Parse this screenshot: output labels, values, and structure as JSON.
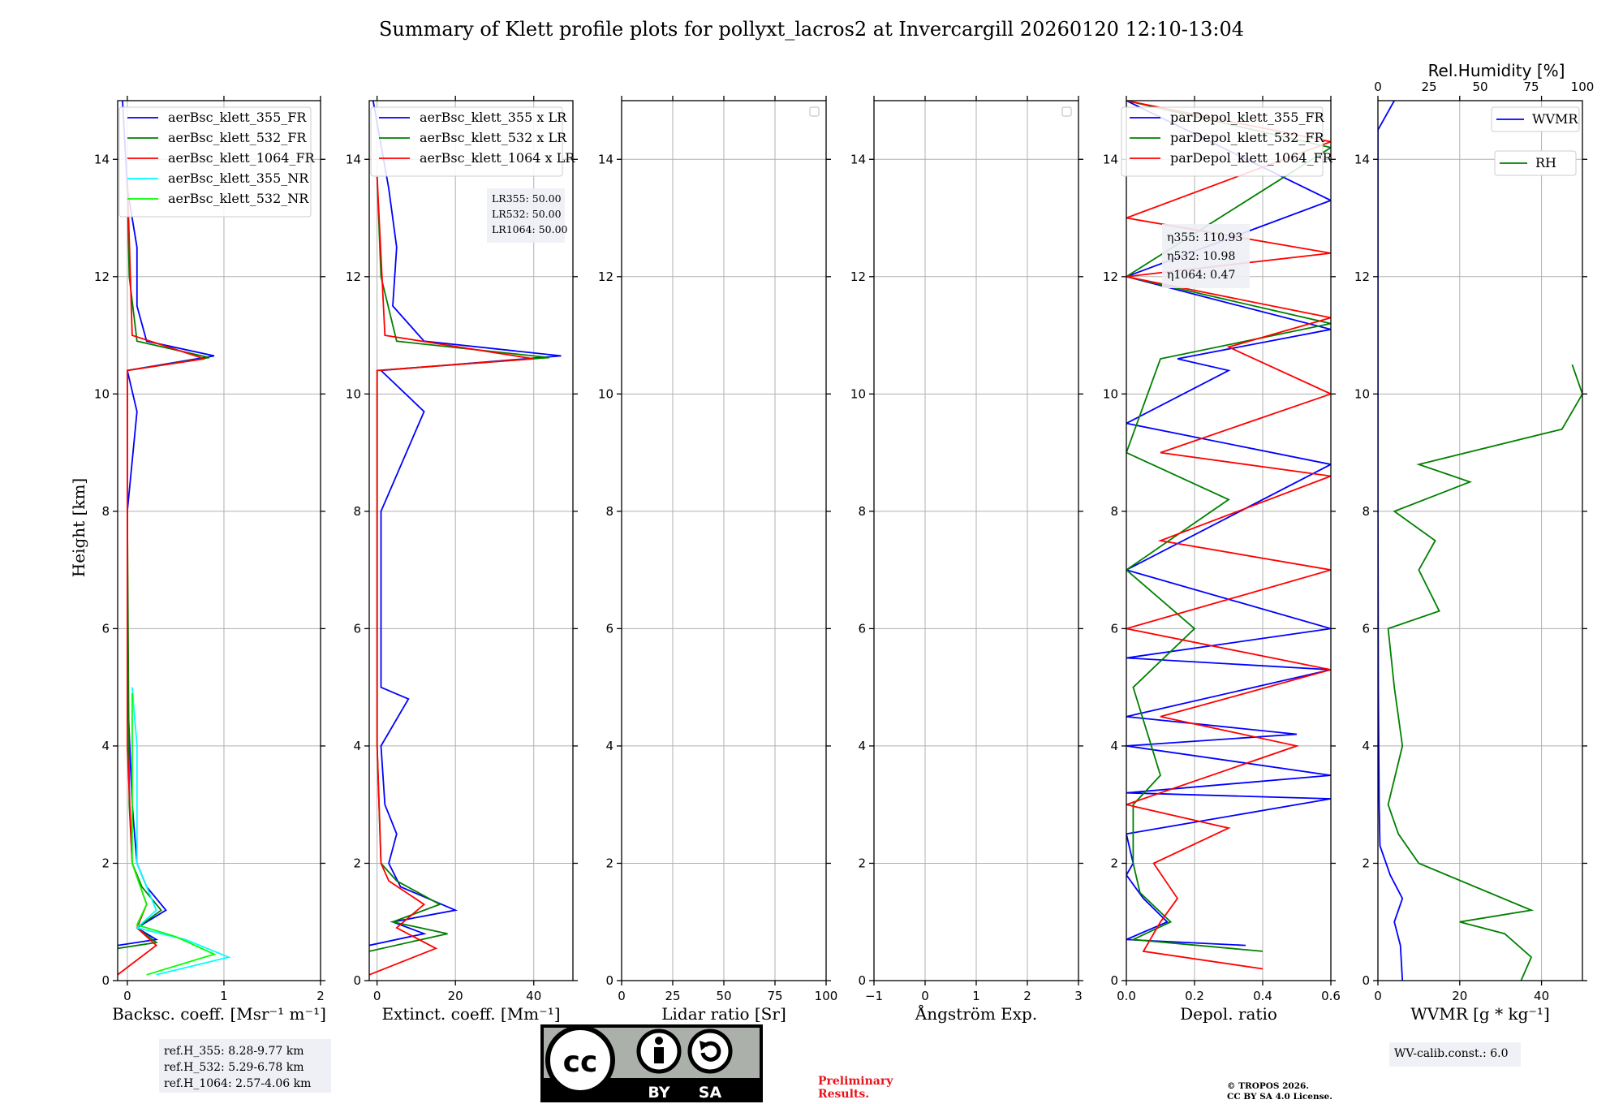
{
  "title": "Summary of Klett profile plots for pollyxt_lacros2 at Invercargill 20260120 12:10-13:04",
  "ylabel": "Height [km]",
  "chart_data": [
    {
      "type": "line",
      "key": "bsc",
      "xlabel": "Backsc. coeff. [Msr⁻¹ m⁻¹]",
      "xlim": [
        -0.1,
        2
      ],
      "xticks": [
        0,
        1,
        2
      ],
      "ylim": [
        0,
        15
      ],
      "yticks": [
        0,
        2,
        4,
        6,
        8,
        10,
        12,
        14
      ],
      "legend": [
        {
          "label": "aerBsc_klett_355_FR",
          "color": "#0000ff"
        },
        {
          "label": "aerBsc_klett_532_FR",
          "color": "#008000"
        },
        {
          "label": "aerBsc_klett_1064_FR",
          "color": "#ff0000"
        },
        {
          "label": "aerBsc_klett_355_NR",
          "color": "#00ffff"
        },
        {
          "label": "aerBsc_klett_532_NR",
          "color": "#00ff00"
        }
      ],
      "series": [
        {
          "name": "aerBsc_klett_355_FR",
          "color": "#0000ff",
          "points": [
            [
              -0.1,
              0.6
            ],
            [
              0.3,
              0.7
            ],
            [
              0.1,
              0.9
            ],
            [
              0.4,
              1.2
            ],
            [
              0.2,
              1.6
            ],
            [
              0.1,
              2.0
            ],
            [
              0.05,
              3.0
            ],
            [
              0.0,
              5.0
            ],
            [
              0.0,
              8.0
            ],
            [
              0.1,
              9.7
            ],
            [
              0.0,
              10.4
            ],
            [
              0.9,
              10.65
            ],
            [
              0.2,
              10.9
            ],
            [
              0.1,
              11.5
            ],
            [
              0.1,
              12.5
            ],
            [
              0.0,
              13.5
            ],
            [
              -0.05,
              15
            ]
          ]
        },
        {
          "name": "aerBsc_klett_532_FR",
          "color": "#008000",
          "points": [
            [
              -0.1,
              0.55
            ],
            [
              0.3,
              0.65
            ],
            [
              0.1,
              0.9
            ],
            [
              0.35,
              1.2
            ],
            [
              0.15,
              1.6
            ],
            [
              0.05,
              2.0
            ],
            [
              0.02,
              3.0
            ],
            [
              0.0,
              8.0
            ],
            [
              0.0,
              10.4
            ],
            [
              0.85,
              10.62
            ],
            [
              0.1,
              10.9
            ],
            [
              0.02,
              12
            ],
            [
              0.0,
              13.5
            ]
          ]
        },
        {
          "name": "aerBsc_klett_1064_FR",
          "color": "#ff0000",
          "points": [
            [
              -0.1,
              0.1
            ],
            [
              0.3,
              0.6
            ],
            [
              0.1,
              0.9
            ],
            [
              0.2,
              1.3
            ],
            [
              0.05,
              2.0
            ],
            [
              0.0,
              4.0
            ],
            [
              0.0,
              10.4
            ],
            [
              0.8,
              10.6
            ],
            [
              0.05,
              11.0
            ],
            [
              0.0,
              13.7
            ]
          ]
        },
        {
          "name": "aerBsc_klett_355_NR",
          "color": "#00ffff",
          "points": [
            [
              0.3,
              0.1
            ],
            [
              1.05,
              0.4
            ],
            [
              0.6,
              0.7
            ],
            [
              0.1,
              0.9
            ],
            [
              0.3,
              1.2
            ],
            [
              0.1,
              2.0
            ],
            [
              0.1,
              3.0
            ],
            [
              0.1,
              4.0
            ],
            [
              0.05,
              5.0
            ]
          ]
        },
        {
          "name": "aerBsc_klett_532_NR",
          "color": "#00ff00",
          "points": [
            [
              0.2,
              0.1
            ],
            [
              0.9,
              0.45
            ],
            [
              0.5,
              0.75
            ],
            [
              0.1,
              0.95
            ],
            [
              0.2,
              1.3
            ],
            [
              0.05,
              2.0
            ],
            [
              0.05,
              3.5
            ],
            [
              0.05,
              4.9
            ]
          ]
        }
      ]
    },
    {
      "type": "line",
      "key": "ext",
      "xlabel": "Extinct. coeff. [Mm⁻¹]",
      "xlim": [
        -2,
        50
      ],
      "xticks": [
        0,
        20,
        40
      ],
      "ylim": [
        0,
        15
      ],
      "yticks": [
        0,
        2,
        4,
        6,
        8,
        10,
        12,
        14
      ],
      "legend": [
        {
          "label": "aerBsc_klett_355 x LR",
          "color": "#0000ff"
        },
        {
          "label": "aerBsc_klett_532 x LR",
          "color": "#008000"
        },
        {
          "label": "aerBsc_klett_1064 x LR",
          "color": "#ff0000"
        }
      ],
      "annotation": [
        "LR355: 50.00",
        "LR532: 50.00",
        "LR1064: 50.00"
      ],
      "series": [
        {
          "name": "aerBsc_klett_355 x LR",
          "color": "#0000ff",
          "points": [
            [
              -2,
              0.6
            ],
            [
              12,
              0.8
            ],
            [
              4,
              1.0
            ],
            [
              20,
              1.2
            ],
            [
              6,
              1.6
            ],
            [
              3,
              2.0
            ],
            [
              5,
              2.5
            ],
            [
              2,
              3.0
            ],
            [
              1,
              4.0
            ],
            [
              8,
              4.8
            ],
            [
              1,
              5.0
            ],
            [
              1,
              8.0
            ],
            [
              12,
              9.7
            ],
            [
              1,
              10.4
            ],
            [
              47,
              10.65
            ],
            [
              12,
              10.9
            ],
            [
              4,
              11.5
            ],
            [
              5,
              12.5
            ],
            [
              3,
              13.5
            ],
            [
              -1,
              15
            ]
          ]
        },
        {
          "name": "aerBsc_klett_532 x LR",
          "color": "#008000",
          "points": [
            [
              -2,
              0.5
            ],
            [
              18,
              0.8
            ],
            [
              4,
              1.0
            ],
            [
              16,
              1.3
            ],
            [
              5,
              1.7
            ],
            [
              1,
              2.0
            ],
            [
              0,
              4.0
            ],
            [
              0,
              10.4
            ],
            [
              44,
              10.62
            ],
            [
              5,
              10.9
            ],
            [
              1,
              12
            ],
            [
              0,
              13.7
            ]
          ]
        },
        {
          "name": "aerBsc_klett_1064 x LR",
          "color": "#ff0000",
          "points": [
            [
              -2,
              0.1
            ],
            [
              15,
              0.55
            ],
            [
              5,
              0.9
            ],
            [
              12,
              1.3
            ],
            [
              3,
              1.7
            ],
            [
              1,
              2.0
            ],
            [
              0,
              4.0
            ],
            [
              0,
              10.4
            ],
            [
              40,
              10.6
            ],
            [
              2,
              11
            ],
            [
              0,
              13.7
            ]
          ]
        }
      ]
    },
    {
      "type": "line",
      "key": "lr",
      "xlabel": "Lidar ratio [Sr]",
      "xlim": [
        0,
        100
      ],
      "xticks": [
        0,
        25,
        50,
        75,
        100
      ],
      "ylim": [
        0,
        15
      ],
      "yticks": [
        0,
        2,
        4,
        6,
        8,
        10,
        12,
        14
      ],
      "series": []
    },
    {
      "type": "line",
      "key": "ang",
      "xlabel": "Ångström Exp.",
      "xlim": [
        -1,
        3
      ],
      "xticks": [
        -1,
        0,
        1,
        2,
        3
      ],
      "ylim": [
        0,
        15
      ],
      "yticks": [
        0,
        2,
        4,
        6,
        8,
        10,
        12,
        14
      ],
      "series": []
    },
    {
      "type": "line",
      "key": "depol",
      "xlabel": "Depol. ratio",
      "xlim": [
        0,
        0.6
      ],
      "xticks": [
        0.0,
        0.2,
        0.4,
        0.6
      ],
      "ylim": [
        0,
        15
      ],
      "yticks": [
        0,
        2,
        4,
        6,
        8,
        10,
        12,
        14
      ],
      "legend": [
        {
          "label": "parDepol_klett_355_FR",
          "color": "#0000ff"
        },
        {
          "label": "parDepol_klett_532_FR",
          "color": "#008000"
        },
        {
          "label": "parDepol_klett_1064_FR",
          "color": "#ff0000"
        }
      ],
      "annotation": [
        "η355: 110.93",
        "η532: 10.98",
        "η1064: 0.47"
      ],
      "series": [
        {
          "name": "parDepol_klett_355_FR",
          "color": "#0000ff",
          "points": [
            [
              0.35,
              0.6
            ],
            [
              0.0,
              0.7
            ],
            [
              0.12,
              1.0
            ],
            [
              0.05,
              1.4
            ],
            [
              0.0,
              1.8
            ],
            [
              0.02,
              2.0
            ],
            [
              0.0,
              2.5
            ],
            [
              0.6,
              3.1
            ],
            [
              0.0,
              3.2
            ],
            [
              0.6,
              3.5
            ],
            [
              0.0,
              4.0
            ],
            [
              0.5,
              4.2
            ],
            [
              0.0,
              4.5
            ],
            [
              0.6,
              5.3
            ],
            [
              0.0,
              5.5
            ],
            [
              0.6,
              6.0
            ],
            [
              0.0,
              7.0
            ],
            [
              0.6,
              8.8
            ],
            [
              0.0,
              9.5
            ],
            [
              0.3,
              10.4
            ],
            [
              0.15,
              10.6
            ],
            [
              0.6,
              11.1
            ],
            [
              0.0,
              12.0
            ],
            [
              0.6,
              13.3
            ],
            [
              0.0,
              15
            ]
          ]
        },
        {
          "name": "parDepol_klett_532_FR",
          "color": "#008000",
          "points": [
            [
              0.4,
              0.5
            ],
            [
              0.02,
              0.7
            ],
            [
              0.13,
              1.0
            ],
            [
              0.04,
              1.5
            ],
            [
              0.02,
              2.0
            ],
            [
              0.02,
              3.0
            ],
            [
              0.1,
              3.5
            ],
            [
              0.02,
              5.0
            ],
            [
              0.2,
              6.0
            ],
            [
              0.0,
              7.0
            ],
            [
              0.3,
              8.2
            ],
            [
              0.0,
              9.0
            ],
            [
              0.1,
              10.6
            ],
            [
              0.6,
              11.2
            ],
            [
              0.0,
              12.0
            ],
            [
              0.6,
              14.2
            ],
            [
              0.0,
              15
            ]
          ]
        },
        {
          "name": "parDepol_klett_1064_FR",
          "color": "#ff0000",
          "points": [
            [
              0.4,
              0.2
            ],
            [
              0.05,
              0.5
            ],
            [
              0.1,
              1.0
            ],
            [
              0.15,
              1.4
            ],
            [
              0.08,
              2.0
            ],
            [
              0.3,
              2.6
            ],
            [
              0.0,
              3.0
            ],
            [
              0.5,
              4.0
            ],
            [
              0.1,
              4.5
            ],
            [
              0.6,
              5.3
            ],
            [
              0.0,
              6.0
            ],
            [
              0.6,
              7.0
            ],
            [
              0.1,
              7.5
            ],
            [
              0.6,
              8.6
            ],
            [
              0.1,
              9.0
            ],
            [
              0.6,
              10.0
            ],
            [
              0.3,
              10.8
            ],
            [
              0.6,
              11.3
            ],
            [
              0.0,
              12.0
            ],
            [
              0.6,
              12.4
            ],
            [
              0.0,
              13.0
            ],
            [
              0.6,
              14.3
            ],
            [
              0.0,
              15
            ]
          ]
        }
      ]
    },
    {
      "type": "line",
      "key": "wv",
      "xlabel": "WVMR [g * kg⁻¹]",
      "xlim": [
        0,
        50
      ],
      "xticks": [
        0,
        20,
        40
      ],
      "x2label": "Rel.Humidity [%]",
      "x2lim": [
        0,
        100
      ],
      "x2ticks": [
        0,
        25,
        50,
        75,
        100
      ],
      "ylim": [
        0,
        15
      ],
      "yticks": [
        0,
        2,
        4,
        6,
        8,
        10,
        12,
        14
      ],
      "legend": [
        {
          "label": "WVMR",
          "color": "#0000ff"
        },
        {
          "label": "RH",
          "color": "#008000"
        }
      ],
      "annotation": [
        "WV-calib.const.: 6.0"
      ],
      "series": [
        {
          "name": "WVMR",
          "color": "#0000ff",
          "points": [
            [
              6,
              0
            ],
            [
              5.5,
              0.6
            ],
            [
              4,
              1.0
            ],
            [
              6,
              1.4
            ],
            [
              3,
              1.8
            ],
            [
              0.5,
              2.3
            ],
            [
              0.3,
              3.0
            ],
            [
              0.1,
              5.0
            ],
            [
              0,
              8.0
            ],
            [
              0,
              14.5
            ],
            [
              4,
              15
            ]
          ]
        },
        {
          "name": "RH",
          "color": "#008000",
          "points": [
            [
              70,
              0
            ],
            [
              75,
              0.4
            ],
            [
              62,
              0.8
            ],
            [
              40,
              1.0
            ],
            [
              75,
              1.2
            ],
            [
              20,
              2.0
            ],
            [
              10,
              2.5
            ],
            [
              5,
              3.0
            ],
            [
              12,
              4.0
            ],
            [
              8,
              5.0
            ],
            [
              5,
              6.0
            ],
            [
              30,
              6.3
            ],
            [
              20,
              7.0
            ],
            [
              28,
              7.5
            ],
            [
              8,
              8.0
            ],
            [
              45,
              8.5
            ],
            [
              20,
              8.8
            ],
            [
              90,
              9.4
            ],
            [
              100,
              10.0
            ],
            [
              95,
              10.5
            ]
          ]
        }
      ]
    }
  ],
  "ref_heights": [
    "ref.H_355: 8.28-9.77 km",
    "ref.H_532: 5.29-6.78 km",
    "ref.H_1064: 2.57-4.06 km"
  ],
  "license_badge": {
    "letters": "cc",
    "by": "BY",
    "sa": "SA"
  },
  "preliminary": [
    "Preliminary",
    "Results."
  ],
  "copyright": [
    "© TROPOS 2026.",
    "CC BY SA 4.0 License."
  ]
}
